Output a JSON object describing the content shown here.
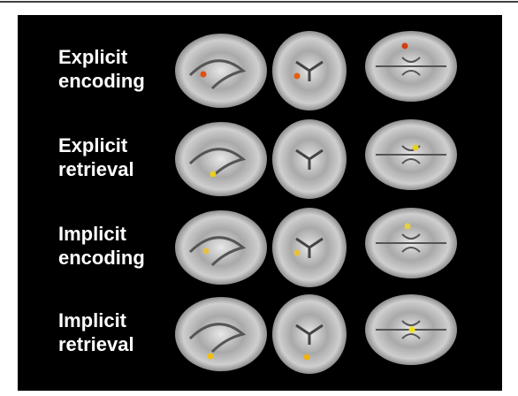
{
  "rows": [
    {
      "lines": [
        "Explicit",
        "encoding"
      ]
    },
    {
      "lines": [
        "Explicit",
        "retrieval"
      ]
    },
    {
      "lines": [
        "Implicit",
        "encoding"
      ]
    },
    {
      "lines": [
        "Implicit",
        "retrieval"
      ]
    }
  ]
}
